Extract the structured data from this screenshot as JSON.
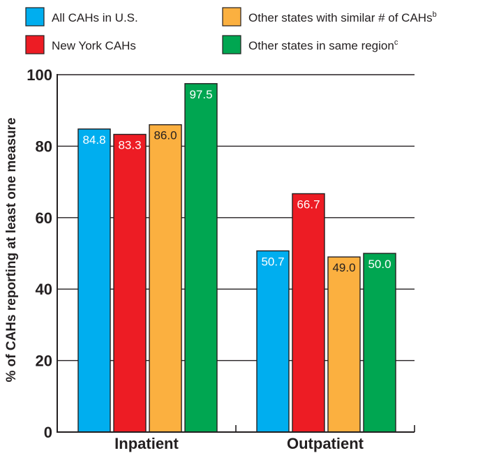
{
  "chart_data": {
    "type": "bar",
    "categories": [
      "Inpatient",
      "Outpatient"
    ],
    "series": [
      {
        "name": "All CAHs in U.S.",
        "values": [
          84.8,
          50.7
        ],
        "color": "#00aeef",
        "label_color": "#ffffff"
      },
      {
        "name": "New York CAHs",
        "values": [
          83.3,
          66.7
        ],
        "color": "#ed1c24",
        "label_color": "#ffffff"
      },
      {
        "name": "Other states with similar # of CAHs",
        "name_sup": "b",
        "values": [
          86.0,
          49.0
        ],
        "color": "#fbb040",
        "label_color": "#231f20"
      },
      {
        "name": "Other states in same region",
        "name_sup": "c",
        "values": [
          97.5,
          50.0
        ],
        "color": "#00a651",
        "label_color": "#ffffff"
      }
    ],
    "data_labels": [
      [
        "84.8",
        "50.7"
      ],
      [
        "83.3",
        "66.7"
      ],
      [
        "86.0",
        "49.0"
      ],
      [
        "97.5",
        "50.0"
      ]
    ],
    "ylabel": "% of CAHs reporting at least one measure",
    "ylim": [
      0,
      100
    ],
    "yticks": [
      0,
      20,
      40,
      60,
      80,
      100
    ],
    "ytick_labels": [
      "0",
      "20",
      "40",
      "60",
      "80",
      "100"
    ],
    "grid": true,
    "legend_placement": "top"
  }
}
